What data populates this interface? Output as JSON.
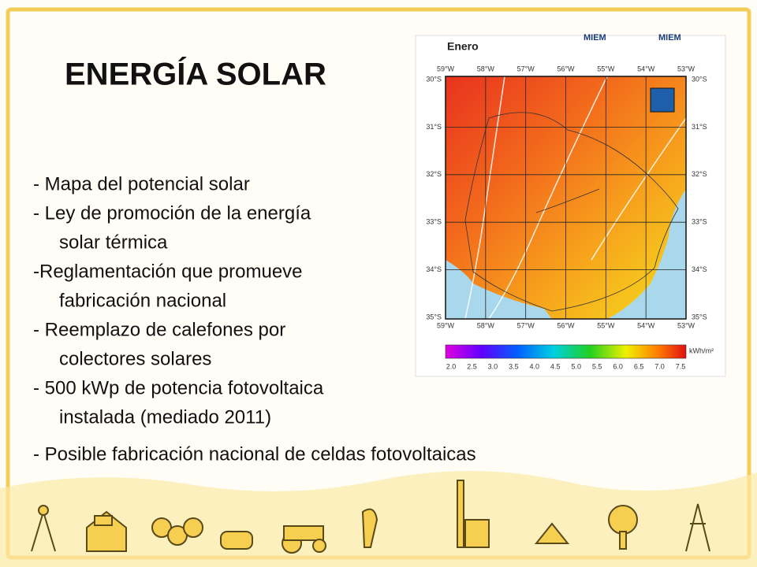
{
  "title": "ENERGÍA SOLAR",
  "bullets": [
    [
      "- Mapa del potencial solar"
    ],
    [
      "- Ley de promoción de la energía",
      "solar térmica"
    ],
    [
      "-Reglamentación que promueve",
      "fabricación nacional"
    ],
    [
      "- Reemplazo de calefones por",
      "colectores solares"
    ],
    [
      "- 500 kWp de potencia fotovoltaica",
      "instalada (mediado 2011)"
    ],
    [
      "- Posible fabricación nacional de celdas fotovoltaicas"
    ]
  ],
  "map": {
    "title": "Enero",
    "logos": [
      "MIEM",
      "MIEM"
    ],
    "lon_labels": [
      "59°W",
      "58°W",
      "57°W",
      "56°W",
      "55°W",
      "54°W",
      "53°W"
    ],
    "lat_labels": [
      "30°S",
      "31°S",
      "32°S",
      "33°S",
      "34°S",
      "35°S"
    ],
    "colorbar": {
      "unit": "kWh/m²",
      "labels": [
        "2.0",
        "2.5",
        "3.0",
        "3.5",
        "4.0",
        "4.5",
        "5.0",
        "5.5",
        "6.0",
        "6.5",
        "7.0",
        "7.5"
      ]
    }
  }
}
